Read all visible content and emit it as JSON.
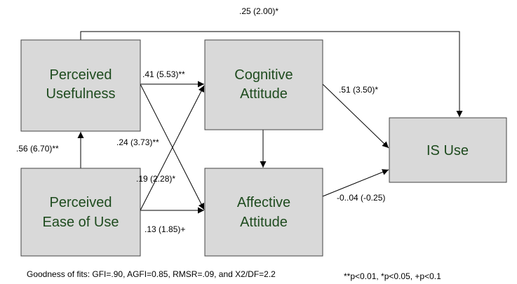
{
  "nodes": [
    {
      "id": "pu",
      "label": [
        "Perceived",
        "Usefulness"
      ]
    },
    {
      "id": "peou",
      "label": [
        "Perceived",
        "Ease of Use"
      ]
    },
    {
      "id": "cog",
      "label": [
        "Cognitive",
        "Attitude"
      ]
    },
    {
      "id": "aff",
      "label": [
        "Affective",
        "Attitude"
      ]
    },
    {
      "id": "is",
      "label": [
        "IS Use"
      ]
    }
  ],
  "edges": [
    {
      "from": "pu",
      "to": "is",
      "label": ".25 (2.00)*"
    },
    {
      "from": "pu",
      "to": "cog",
      "label": ".41 (5.53)**"
    },
    {
      "from": "pu",
      "to": "aff",
      "label": ".24 (3.73)**"
    },
    {
      "from": "peou",
      "to": "cog",
      "label": ".19 (2.28)*"
    },
    {
      "from": "peou",
      "to": "aff",
      "label": ".13 (1.85)+"
    },
    {
      "from": "peou",
      "to": "pu",
      "label": ".56 (6.70)**"
    },
    {
      "from": "cog",
      "to": "is",
      "label": ".51 (3.50)*"
    },
    {
      "from": "aff",
      "to": "is",
      "label": "-0..04 (-0.25)"
    }
  ],
  "footnotes": [
    "Goodness of fits: GFI=.90, AGFI=0.85, RMSR=.09, and X2/DF=2.2",
    "**p<0.01, *p<0.05, +p<0.1"
  ]
}
